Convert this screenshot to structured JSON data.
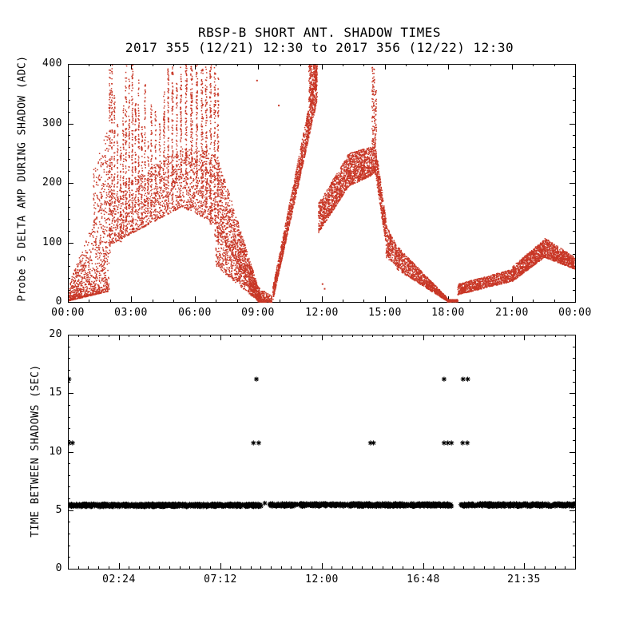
{
  "page": {
    "background": "#ffffff",
    "text_color": "#000000"
  },
  "chart_data": [
    {
      "type": "scatter",
      "panel": "top",
      "title": "RBSP-B SHORT ANT. SHADOW TIMES",
      "subtitle": "2017 355 (12/21) 12:30 to 2017 356 (12/22) 12:30",
      "ylabel": "Probe 5 DELTA AMP DURING SHADOW (ADC)",
      "xlabel": "",
      "x_unit": "hours of day (HH:MM)",
      "xlim_hours": [
        0,
        24
      ],
      "ylim": [
        0,
        400
      ],
      "grid": false,
      "marker": "dot",
      "marker_color": "#c83726",
      "xticks": [
        {
          "t": 0,
          "label": "00:00"
        },
        {
          "t": 3,
          "label": "03:00"
        },
        {
          "t": 6,
          "label": "06:00"
        },
        {
          "t": 9,
          "label": "09:00"
        },
        {
          "t": 12,
          "label": "12:00"
        },
        {
          "t": 15,
          "label": "15:00"
        },
        {
          "t": 18,
          "label": "18:00"
        },
        {
          "t": 21,
          "label": "21:00"
        },
        {
          "t": 24,
          "label": "00:00"
        }
      ],
      "yticks": [
        {
          "v": 0,
          "label": "0"
        },
        {
          "v": 100,
          "label": "100"
        },
        {
          "v": 200,
          "label": "200"
        },
        {
          "v": 300,
          "label": "300"
        },
        {
          "v": 400,
          "label": "400"
        }
      ],
      "bands": [
        {
          "t0": 0.05,
          "t1": 1.95,
          "lo0": 2,
          "lo1": 18,
          "hi0": 30,
          "hi1": 200,
          "n": 900,
          "bias": 2.2
        },
        {
          "t0": 1.2,
          "t1": 1.95,
          "lo0": 120,
          "lo1": 200,
          "hi0": 220,
          "hi1": 300,
          "n": 130,
          "bias": 1.5
        },
        {
          "t0": 1.95,
          "t1": 5.4,
          "lo0": 95,
          "lo1": 160,
          "hi0": 180,
          "hi1": 260,
          "n": 900,
          "bias": 1.6
        },
        {
          "t0": 5.4,
          "t1": 7.05,
          "lo0": 160,
          "lo1": 130,
          "hi0": 260,
          "hi1": 250,
          "n": 500,
          "bias": 1.4
        },
        {
          "t0": 7.05,
          "t1": 9.15,
          "lo0": 120,
          "lo1": 1,
          "hi0": 250,
          "hi1": 8,
          "n": 1100,
          "bias": 1.2
        },
        {
          "t0": 7.0,
          "t1": 9.05,
          "lo0": 60,
          "lo1": 0,
          "hi0": 130,
          "hi1": 5,
          "n": 500,
          "bias": 1.2
        },
        {
          "t0": 9.0,
          "t1": 9.65,
          "lo0": 0,
          "lo1": 0,
          "hi0": 25,
          "hi1": 10,
          "n": 220,
          "bias": 2.0
        },
        {
          "t0": 9.7,
          "t1": 11.8,
          "lo0": 3,
          "lo1": 340,
          "hi0": 25,
          "hi1": 400,
          "n": 1400,
          "bias": 1.3
        },
        {
          "t0": 11.85,
          "t1": 13.3,
          "lo0": 115,
          "lo1": 195,
          "hi0": 165,
          "hi1": 250,
          "n": 900,
          "bias": 1.2
        },
        {
          "t0": 13.3,
          "t1": 14.55,
          "lo0": 195,
          "lo1": 215,
          "hi0": 250,
          "hi1": 262,
          "n": 800,
          "bias": 1.2
        },
        {
          "t0": 14.55,
          "t1": 15.05,
          "lo0": 215,
          "lo1": 95,
          "hi0": 265,
          "hi1": 140,
          "n": 360,
          "bias": 1.0
        },
        {
          "t0": 15.05,
          "t1": 15.55,
          "lo0": 75,
          "lo1": 60,
          "hi0": 130,
          "hi1": 95,
          "n": 260,
          "bias": 1.0
        },
        {
          "t0": 15.55,
          "t1": 17.95,
          "lo0": 55,
          "lo1": 1,
          "hi0": 95,
          "hi1": 7,
          "n": 1000,
          "bias": 1.1
        },
        {
          "t0": 17.95,
          "t1": 18.45,
          "lo0": 0,
          "lo1": 0,
          "hi0": 4,
          "hi1": 4,
          "n": 200,
          "bias": 1.0
        },
        {
          "t0": 18.45,
          "t1": 21.05,
          "lo0": 12,
          "lo1": 35,
          "hi0": 30,
          "hi1": 55,
          "n": 900,
          "bias": 1.2
        },
        {
          "t0": 21.05,
          "t1": 22.55,
          "lo0": 35,
          "lo1": 75,
          "hi0": 60,
          "hi1": 105,
          "n": 800,
          "bias": 1.2
        },
        {
          "t0": 22.55,
          "t1": 23.98,
          "lo0": 75,
          "lo1": 55,
          "hi0": 108,
          "hi1": 75,
          "n": 700,
          "bias": 1.2
        }
      ],
      "columns": [
        {
          "t": 1.98,
          "w": 0.07,
          "y0": 80,
          "y1": 395,
          "n": 90
        },
        {
          "t": 2.08,
          "w": 0.05,
          "y0": 120,
          "y1": 400,
          "n": 80
        },
        {
          "t": 2.2,
          "w": 0.05,
          "y0": 140,
          "y1": 350,
          "n": 60
        },
        {
          "t": 2.35,
          "w": 0.05,
          "y0": 110,
          "y1": 300,
          "n": 50
        },
        {
          "t": 2.5,
          "w": 0.06,
          "y0": 100,
          "y1": 260,
          "n": 50
        },
        {
          "t": 2.62,
          "w": 0.05,
          "y0": 120,
          "y1": 330,
          "n": 60
        },
        {
          "t": 2.75,
          "w": 0.06,
          "y0": 110,
          "y1": 400,
          "n": 90
        },
        {
          "t": 2.9,
          "w": 0.05,
          "y0": 130,
          "y1": 375,
          "n": 70
        },
        {
          "t": 3.05,
          "w": 0.06,
          "y0": 120,
          "y1": 400,
          "n": 90
        },
        {
          "t": 3.2,
          "w": 0.05,
          "y0": 150,
          "y1": 340,
          "n": 60
        },
        {
          "t": 3.35,
          "w": 0.05,
          "y0": 140,
          "y1": 375,
          "n": 70
        },
        {
          "t": 3.5,
          "w": 0.06,
          "y0": 130,
          "y1": 300,
          "n": 50
        },
        {
          "t": 3.65,
          "w": 0.05,
          "y0": 160,
          "y1": 365,
          "n": 60
        },
        {
          "t": 3.8,
          "w": 0.05,
          "y0": 150,
          "y1": 270,
          "n": 40
        },
        {
          "t": 3.95,
          "w": 0.06,
          "y0": 140,
          "y1": 340,
          "n": 60
        },
        {
          "t": 4.15,
          "w": 0.05,
          "y0": 170,
          "y1": 330,
          "n": 50
        },
        {
          "t": 4.35,
          "w": 0.05,
          "y0": 150,
          "y1": 300,
          "n": 40
        },
        {
          "t": 4.55,
          "w": 0.06,
          "y0": 180,
          "y1": 355,
          "n": 60
        },
        {
          "t": 4.75,
          "w": 0.05,
          "y0": 160,
          "y1": 395,
          "n": 80
        },
        {
          "t": 4.95,
          "w": 0.06,
          "y0": 170,
          "y1": 400,
          "n": 90
        },
        {
          "t": 5.15,
          "w": 0.05,
          "y0": 200,
          "y1": 370,
          "n": 60
        },
        {
          "t": 5.35,
          "w": 0.06,
          "y0": 190,
          "y1": 400,
          "n": 80
        },
        {
          "t": 5.6,
          "w": 0.07,
          "y0": 200,
          "y1": 400,
          "n": 90
        },
        {
          "t": 5.85,
          "w": 0.08,
          "y0": 220,
          "y1": 400,
          "n": 100
        },
        {
          "t": 6.1,
          "w": 0.07,
          "y0": 180,
          "y1": 400,
          "n": 90
        },
        {
          "t": 6.35,
          "w": 0.09,
          "y0": 160,
          "y1": 400,
          "n": 110
        },
        {
          "t": 6.55,
          "w": 0.08,
          "y0": 150,
          "y1": 400,
          "n": 110
        },
        {
          "t": 6.75,
          "w": 0.07,
          "y0": 130,
          "y1": 400,
          "n": 100
        },
        {
          "t": 6.95,
          "w": 0.07,
          "y0": 110,
          "y1": 400,
          "n": 100
        },
        {
          "t": 7.1,
          "w": 0.06,
          "y0": 100,
          "y1": 380,
          "n": 80
        },
        {
          "t": 11.5,
          "w": 0.2,
          "y0": 330,
          "y1": 400,
          "n": 140
        },
        {
          "t": 11.7,
          "w": 0.15,
          "y0": 355,
          "y1": 400,
          "n": 110
        },
        {
          "t": 14.45,
          "w": 0.12,
          "y0": 255,
          "y1": 395,
          "n": 80
        },
        {
          "t": 14.55,
          "w": 0.1,
          "y0": 240,
          "y1": 360,
          "n": 50
        }
      ],
      "points": [
        [
          8.95,
          372
        ],
        [
          9.98,
          330
        ],
        [
          12.05,
          30
        ],
        [
          12.15,
          22
        ]
      ]
    },
    {
      "type": "scatter",
      "panel": "bottom",
      "title": "",
      "ylabel": "TIME BETWEEN SHADOWS (SEC)",
      "xlabel": "",
      "x_unit": "hours of day (HH:MM)",
      "xlim_hours": [
        0,
        24
      ],
      "ylim": [
        0,
        20
      ],
      "grid": false,
      "marker": "asterisk",
      "marker_color": "#000000",
      "xticks": [
        {
          "t": 2.4,
          "label": "02:24"
        },
        {
          "t": 7.2,
          "label": "07:12"
        },
        {
          "t": 12.0,
          "label": "12:00"
        },
        {
          "t": 16.8,
          "label": "16:48"
        },
        {
          "t": 21.583,
          "label": "21:35"
        }
      ],
      "yticks": [
        {
          "v": 0,
          "label": "0"
        },
        {
          "v": 5,
          "label": "5"
        },
        {
          "v": 10,
          "label": "10"
        },
        {
          "v": 15,
          "label": "15"
        },
        {
          "v": 20,
          "label": "20"
        }
      ],
      "band_segments": [
        {
          "t0": 0.02,
          "t1": 9.15,
          "y": 5.42,
          "jitter": 0.12,
          "per_hour": 62
        },
        {
          "t0": 9.5,
          "t1": 18.15,
          "y": 5.45,
          "jitter": 0.12,
          "per_hour": 62
        },
        {
          "t0": 18.55,
          "t1": 23.98,
          "y": 5.45,
          "jitter": 0.12,
          "per_hour": 62
        }
      ],
      "extra_band_points": [
        [
          9.32,
          5.6
        ]
      ],
      "levels": [
        {
          "value": 10.75,
          "times": [
            0.06,
            0.22,
            8.78,
            9.03,
            14.32,
            14.46,
            17.8,
            17.98,
            18.15,
            18.68,
            18.9
          ]
        },
        {
          "value": 16.2,
          "times": [
            0.05,
            8.92,
            17.8,
            18.7,
            18.92
          ]
        }
      ]
    }
  ]
}
